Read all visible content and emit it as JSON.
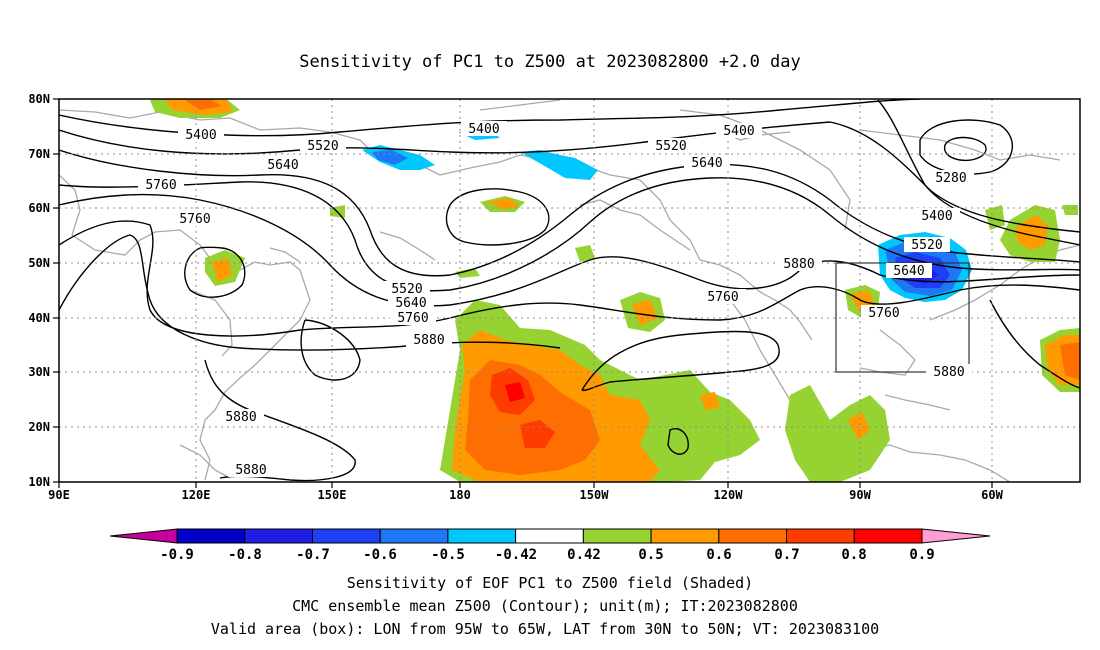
{
  "title": "Sensitivity of PC1 to Z500 at 2023082800 +2.0 day",
  "map": {
    "lon_labels": [
      "90E",
      "120E",
      "150E",
      "180",
      "150W",
      "120W",
      "90W",
      "60W"
    ],
    "lat_labels": [
      "80N",
      "70N",
      "60N",
      "50N",
      "40N",
      "30N",
      "20N",
      "10N"
    ],
    "lon_range": [
      90,
      315
    ],
    "lat_range": [
      10,
      80
    ],
    "grid": "dotted, every 30 deg lon and 10 deg lat",
    "valid_box": {
      "lon_west": -95,
      "lon_east": -65,
      "lat_south": 30,
      "lat_north": 50
    },
    "contour_labels": [
      {
        "text": "5400"
      },
      {
        "text": "5400"
      },
      {
        "text": "5400"
      },
      {
        "text": "5520"
      },
      {
        "text": "5520"
      },
      {
        "text": "5520"
      },
      {
        "text": "5520"
      },
      {
        "text": "5640"
      },
      {
        "text": "5640"
      },
      {
        "text": "5640"
      },
      {
        "text": "5640"
      },
      {
        "text": "5760"
      },
      {
        "text": "5760"
      },
      {
        "text": "5760"
      },
      {
        "text": "5760"
      },
      {
        "text": "5760"
      },
      {
        "text": "5880"
      },
      {
        "text": "5880"
      },
      {
        "text": "5880"
      },
      {
        "text": "5880"
      },
      {
        "text": "5880"
      },
      {
        "text": "5280"
      },
      {
        "text": "5400"
      }
    ]
  },
  "colorbar": {
    "labels": [
      "-0.9",
      "-0.8",
      "-0.7",
      "-0.6",
      "-0.5",
      "-0.42",
      "0.42",
      "0.5",
      "0.6",
      "0.7",
      "0.8",
      "0.9"
    ],
    "colors": [
      "#c8009b",
      "#0000c8",
      "#1e1ee6",
      "#1f3ff5",
      "#1e78f5",
      "#00c8ff",
      "#ffffff",
      "#96d232",
      "#ff9a00",
      "#ff6e00",
      "#ff3c00",
      "#ff0000",
      "#ff9ed2"
    ]
  },
  "captions": [
    "Sensitivity of EOF PC1 to Z500 field (Shaded)",
    "CMC ensemble mean Z500 (Contour); unit(m); IT:2023082800",
    "Valid area (box): LON from 95W to 65W, LAT from 30N to 50N; VT: 2023083100"
  ]
}
